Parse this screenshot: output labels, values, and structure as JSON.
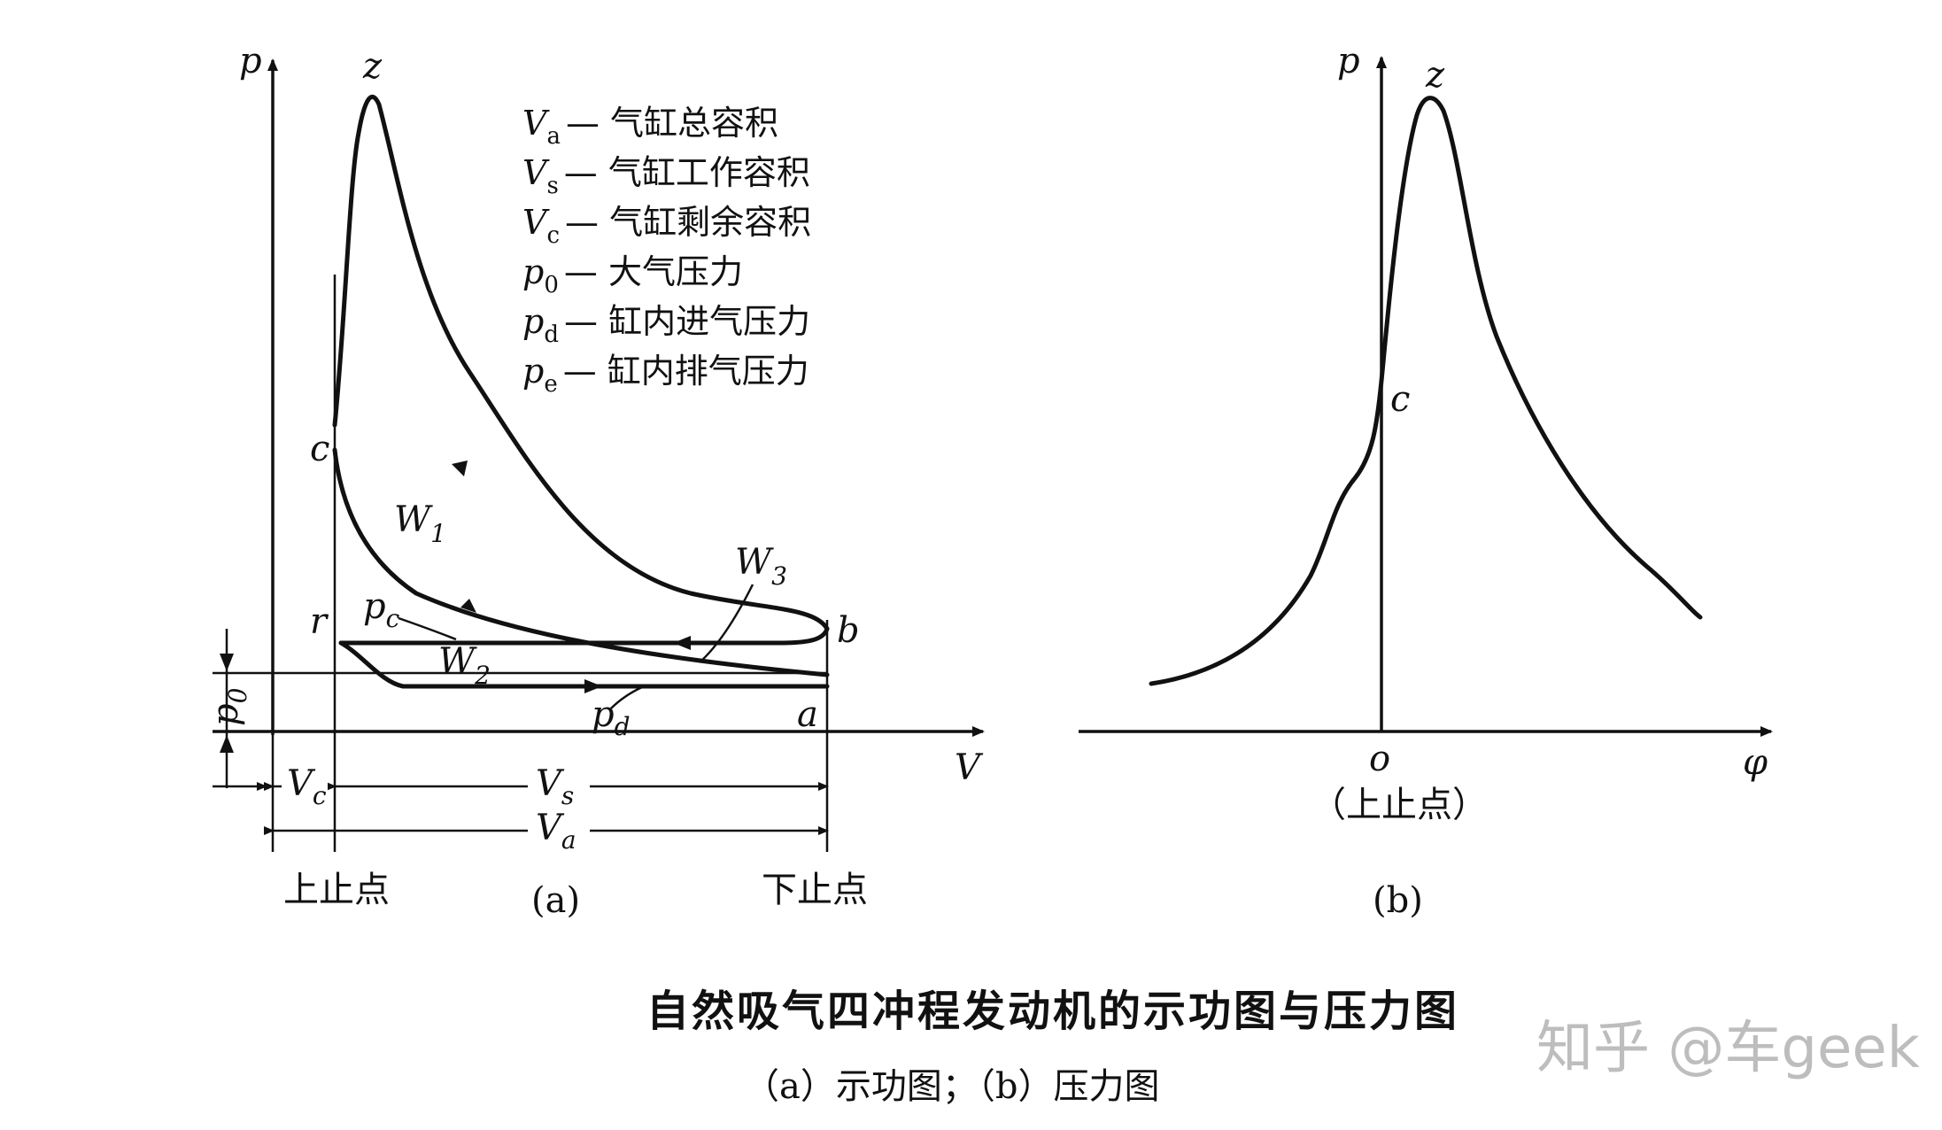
{
  "figure": {
    "title": "自然吸气四冲程发动机的示功图与压力图",
    "subtitle": "（a）示功图；（b）压力图",
    "watermark": "知乎 @车geek"
  },
  "panel_a": {
    "caption": "(a)",
    "axis_p": "p",
    "axis_v": "V",
    "points": {
      "z": "z",
      "c": "c",
      "r": "r",
      "b": "b",
      "a": "a"
    },
    "works": {
      "w1": "W",
      "w1_sub": "1",
      "w2": "W",
      "w2_sub": "2",
      "w3": "W",
      "w3_sub": "3"
    },
    "pressures": {
      "pc": "p",
      "pc_sub": "c",
      "pd": "p",
      "pd_sub": "d",
      "p0": "p",
      "p0_sub": "0"
    },
    "volumes": {
      "vc": "V",
      "vc_sub": "c",
      "vs": "V",
      "vs_sub": "s",
      "va": "V",
      "va_sub": "a"
    },
    "tdc": "上止点",
    "bdc": "下止点",
    "legend": [
      {
        "sym": "V",
        "sub": "a",
        "text": "— 气缸总容积"
      },
      {
        "sym": "V",
        "sub": "s",
        "text": "— 气缸工作容积"
      },
      {
        "sym": "V",
        "sub": "c",
        "text": "— 气缸剩余容积"
      },
      {
        "sym": "p",
        "sub": "0",
        "text": "— 大气压力"
      },
      {
        "sym": "p",
        "sub": "d",
        "text": "— 缸内进气压力"
      },
      {
        "sym": "p",
        "sub": "e",
        "text": "— 缸内排气压力"
      }
    ]
  },
  "panel_b": {
    "caption": "(b)",
    "axis_p": "p",
    "axis_phi": "φ",
    "z": "z",
    "c": "c",
    "origin": "o",
    "origin_note": "（上止点）"
  }
}
